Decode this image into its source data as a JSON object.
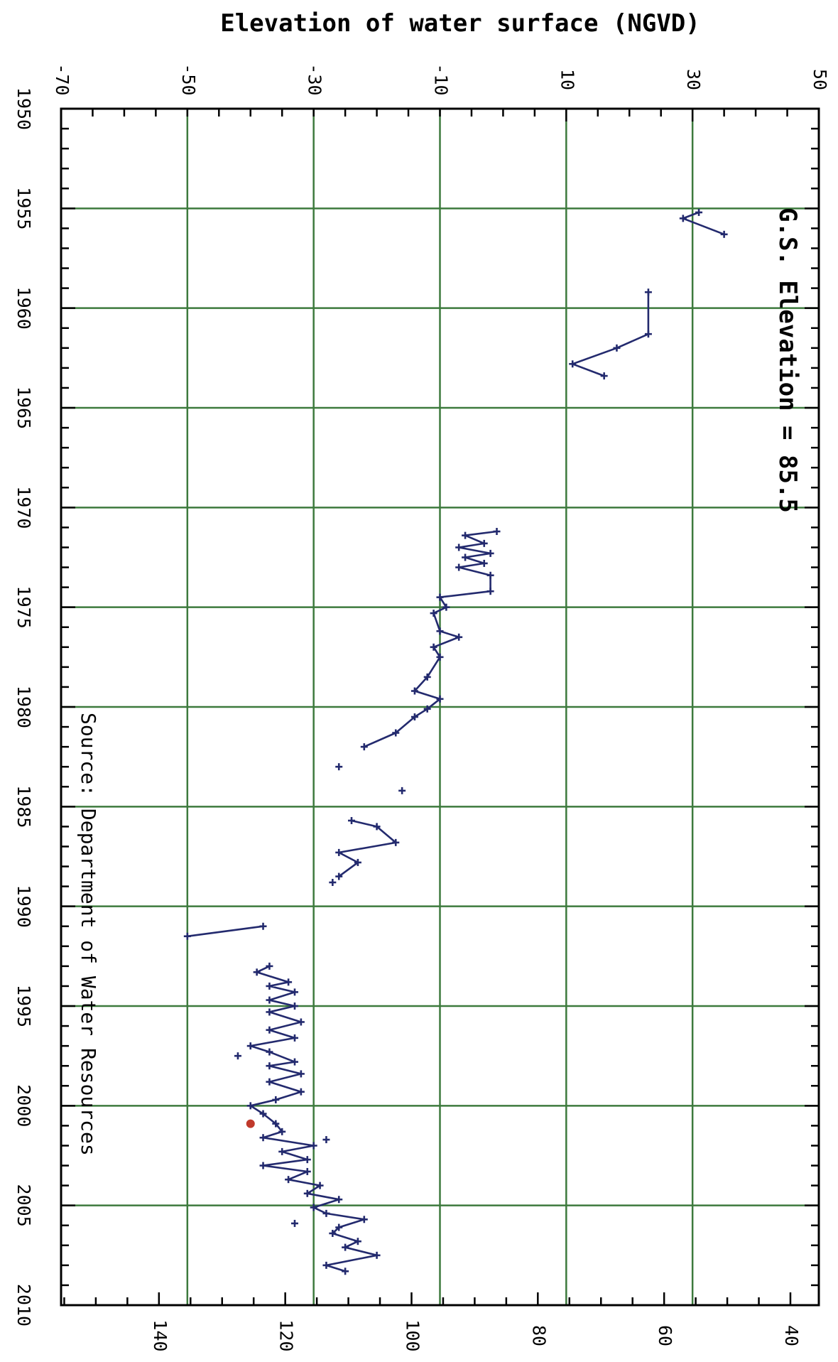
{
  "chart_data": {
    "type": "line",
    "title": "",
    "orientation": "rotated-90-clockwise",
    "x_axis": {
      "label": "",
      "ticks": [
        "1950",
        "1955",
        "1960",
        "1965",
        "1970",
        "1975",
        "1980",
        "1985",
        "1990",
        "1995",
        "2000",
        "2005",
        "2010"
      ],
      "range": [
        1950,
        2010
      ]
    },
    "y_axis_elevation": {
      "label": "Elevation of water surface (NGVD)",
      "ticks": [
        "-70",
        "-50",
        "-30",
        "-10",
        "10",
        "30",
        "50"
      ],
      "range": [
        -70,
        50
      ]
    },
    "y_axis_depth": {
      "label": "",
      "ticks": [
        "140",
        "120",
        "100",
        "80",
        "60",
        "40"
      ],
      "range": [
        155.5,
        35.5
      ]
    },
    "grid": true,
    "annotations": {
      "gs_elevation": "G.S. Elevation = 85.5",
      "source": "Source: Department of Water Resources"
    },
    "colors": {
      "series": "#232a6e",
      "grid": "#3d7a3d",
      "highlight": "#c0392b",
      "axis": "#000000"
    },
    "series": [
      {
        "name": "",
        "segments": [
          [
            [
              1955.2,
              31
            ],
            [
              1955.5,
              28.5
            ],
            [
              1956.3,
              35
            ]
          ],
          [
            [
              1959.2,
              23
            ],
            [
              1961.3,
              23
            ],
            [
              1962,
              18
            ],
            [
              1962.8,
              11
            ],
            [
              1963.4,
              16
            ]
          ],
          [
            [
              1971.2,
              -1
            ],
            [
              1971.4,
              -6
            ],
            [
              1971.8,
              -3
            ],
            [
              1972,
              -7
            ],
            [
              1972.3,
              -2
            ],
            [
              1972.5,
              -6
            ],
            [
              1972.8,
              -3
            ],
            [
              1973,
              -7
            ],
            [
              1973.4,
              -2
            ],
            [
              1974.2,
              -2
            ],
            [
              1974.5,
              -10
            ],
            [
              1975,
              -9
            ],
            [
              1975.3,
              -11
            ],
            [
              1976.2,
              -10
            ],
            [
              1976.5,
              -7
            ],
            [
              1977,
              -11
            ],
            [
              1977.5,
              -10
            ],
            [
              1978.5,
              -12
            ],
            [
              1979.2,
              -14
            ],
            [
              1979.6,
              -10
            ],
            [
              1980.1,
              -12
            ],
            [
              1980.5,
              -14
            ],
            [
              1981.3,
              -17
            ],
            [
              1982,
              -22
            ]
          ],
          [
            [
              1983,
              -26
            ]
          ],
          [
            [
              1984.2,
              -16
            ]
          ],
          [
            [
              1985.7,
              -24
            ],
            [
              1986,
              -20
            ],
            [
              1986.8,
              -17
            ],
            [
              1987.3,
              -26
            ],
            [
              1987.8,
              -23
            ],
            [
              1988.5,
              -26
            ]
          ],
          [
            [
              1988.8,
              -27
            ]
          ],
          [
            [
              1991,
              -38
            ],
            [
              1991.5,
              -50
            ]
          ],
          [
            [
              1993,
              -37
            ],
            [
              1993.3,
              -39
            ],
            [
              1993.8,
              -34
            ],
            [
              1994,
              -37
            ],
            [
              1994.3,
              -33
            ],
            [
              1994.7,
              -37
            ],
            [
              1995,
              -33
            ],
            [
              1995.3,
              -37
            ],
            [
              1995.8,
              -32
            ],
            [
              1996.2,
              -37
            ],
            [
              1996.6,
              -33
            ],
            [
              1997,
              -40
            ],
            [
              1997.3,
              -37
            ],
            [
              1997.8,
              -33
            ],
            [
              1998,
              -37
            ],
            [
              1998.4,
              -32
            ],
            [
              1998.8,
              -37
            ],
            [
              1999.3,
              -32
            ],
            [
              1999.7,
              -36
            ],
            [
              2000,
              -40
            ],
            [
              2000.4,
              -38
            ],
            [
              2000.9,
              -36
            ],
            [
              2001.3,
              -35
            ],
            [
              2001.6,
              -38
            ],
            [
              2002,
              -30
            ],
            [
              2002.3,
              -35
            ],
            [
              2002.7,
              -31
            ],
            [
              2003,
              -38
            ],
            [
              2003.3,
              -31
            ],
            [
              2003.7,
              -34
            ],
            [
              2004,
              -29
            ],
            [
              2004.4,
              -31
            ],
            [
              2004.7,
              -26
            ],
            [
              2005.1,
              -30
            ],
            [
              2005.4,
              -28
            ],
            [
              2005.7,
              -22
            ],
            [
              2006.1,
              -26
            ],
            [
              2006.4,
              -27
            ],
            [
              2006.8,
              -23
            ],
            [
              2007.1,
              -25
            ],
            [
              2007.5,
              -20
            ],
            [
              2008,
              -28
            ],
            [
              2008.3,
              -25
            ]
          ],
          [
            [
              1997.5,
              -42
            ]
          ],
          [
            [
              2001.7,
              -28
            ]
          ],
          [
            [
              2005.9,
              -33
            ]
          ]
        ],
        "highlight_points": [
          [
            2000.9,
            -40
          ]
        ]
      }
    ]
  }
}
